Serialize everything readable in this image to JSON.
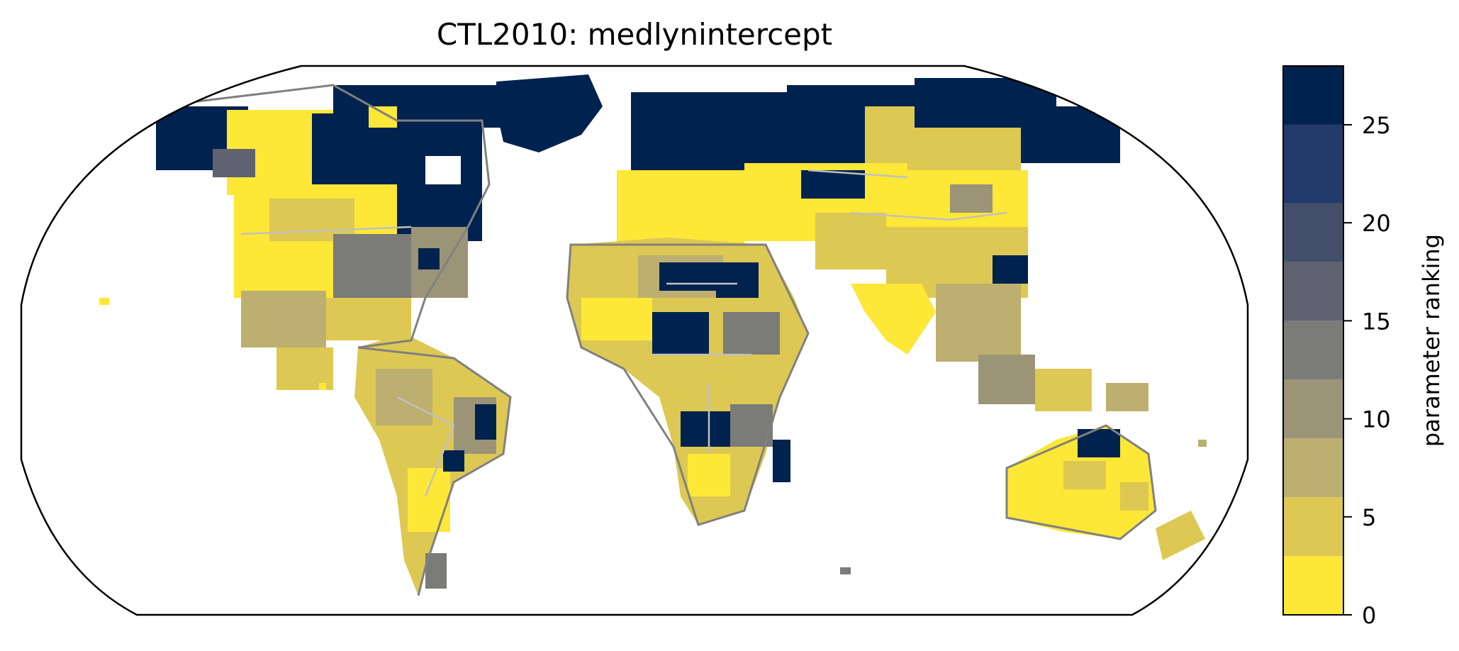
{
  "title": "CTL2010: medlynintercept",
  "projection": "Robinson",
  "colorbar": {
    "label": "parameter ranking",
    "range": [
      0,
      28
    ],
    "ticks": [
      {
        "value": 0,
        "label": "0"
      },
      {
        "value": 5,
        "label": "5"
      },
      {
        "value": 10,
        "label": "10"
      },
      {
        "value": 15,
        "label": "15"
      },
      {
        "value": 20,
        "label": "20"
      },
      {
        "value": 25,
        "label": "25"
      }
    ],
    "bins": [
      {
        "from": 0,
        "to": 3,
        "color": "#fde737"
      },
      {
        "from": 3,
        "to": 6,
        "color": "#ddc853"
      },
      {
        "from": 6,
        "to": 9,
        "color": "#bcaf6f"
      },
      {
        "from": 9,
        "to": 12,
        "color": "#9b9477"
      },
      {
        "from": 12,
        "to": 15,
        "color": "#7b7b78"
      },
      {
        "from": 15,
        "to": 18,
        "color": "#5f6371"
      },
      {
        "from": 18,
        "to": 21,
        "color": "#434e6b"
      },
      {
        "from": 21,
        "to": 25,
        "color": "#22396a"
      },
      {
        "from": 25,
        "to": 28,
        "color": "#00224e"
      }
    ]
  },
  "colors": {
    "coastline": "#808080",
    "borders": "#c0c0c0",
    "map_outline": "#000000"
  }
}
